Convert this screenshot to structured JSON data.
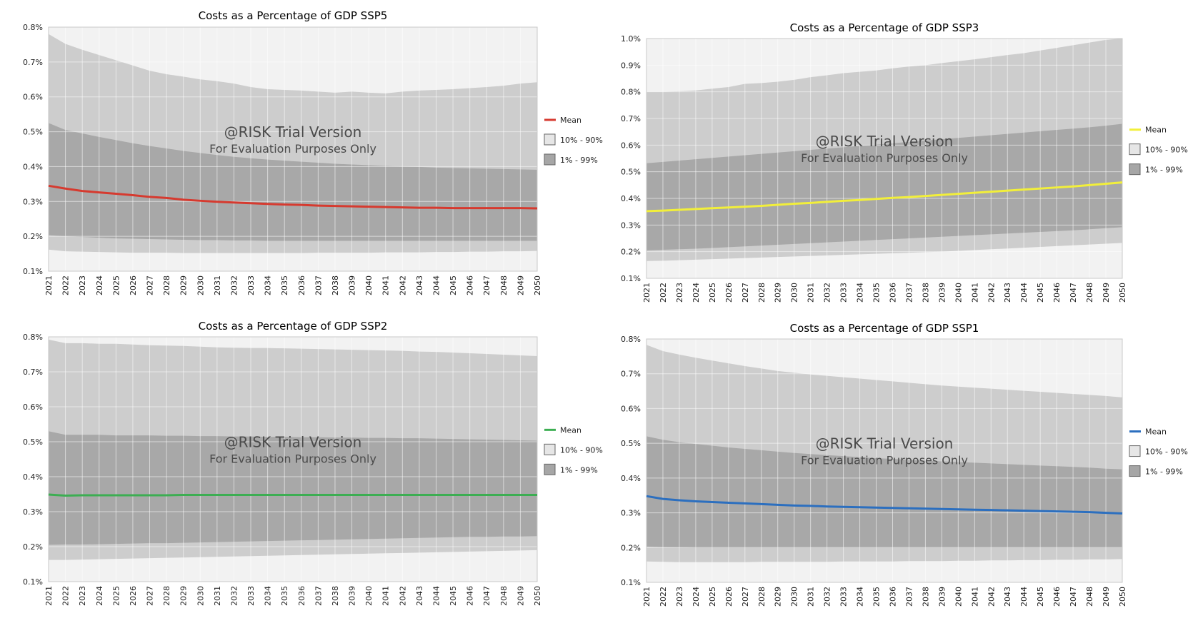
{
  "watermark": {
    "line1": "@RISK Trial Version",
    "line2": "For Evaluation Purposes Only"
  },
  "chart_data": [
    {
      "type": "area",
      "title": "Costs as a Percentage of GDP SSP5",
      "xlabel": "",
      "ylabel": "",
      "x": [
        2021,
        2022,
        2023,
        2024,
        2025,
        2026,
        2027,
        2028,
        2029,
        2030,
        2031,
        2032,
        2033,
        2034,
        2035,
        2036,
        2037,
        2038,
        2039,
        2040,
        2041,
        2042,
        2043,
        2044,
        2045,
        2046,
        2047,
        2048,
        2049,
        2050
      ],
      "yticks": [
        "0.1%",
        "0.2%",
        "0.3%",
        "0.4%",
        "0.5%",
        "0.6%",
        "0.7%",
        "0.8%"
      ],
      "ylim": [
        0.1,
        0.8
      ],
      "grid": true,
      "legend_position": "right",
      "legend": [
        "Mean",
        "10% - 90%",
        "1% - 99%"
      ],
      "mean_color": "#d63a2f",
      "series": [
        {
          "name": "Mean",
          "values": [
            0.345,
            0.337,
            0.33,
            0.326,
            0.322,
            0.318,
            0.313,
            0.31,
            0.305,
            0.302,
            0.299,
            0.297,
            0.295,
            0.293,
            0.291,
            0.29,
            0.288,
            0.287,
            0.286,
            0.285,
            0.284,
            0.283,
            0.282,
            0.282,
            0.281,
            0.281,
            0.281,
            0.281,
            0.281,
            0.28
          ]
        },
        {
          "name": "1%",
          "values": [
            0.162,
            0.157,
            0.156,
            0.155,
            0.154,
            0.153,
            0.153,
            0.153,
            0.152,
            0.152,
            0.152,
            0.152,
            0.152,
            0.152,
            0.152,
            0.152,
            0.153,
            0.153,
            0.153,
            0.153,
            0.154,
            0.154,
            0.154,
            0.155,
            0.155,
            0.156,
            0.156,
            0.157,
            0.157,
            0.158
          ]
        },
        {
          "name": "10%",
          "values": [
            0.203,
            0.2,
            0.198,
            0.196,
            0.194,
            0.193,
            0.192,
            0.191,
            0.19,
            0.189,
            0.189,
            0.188,
            0.188,
            0.187,
            0.187,
            0.187,
            0.187,
            0.187,
            0.187,
            0.187,
            0.187,
            0.187,
            0.187,
            0.187,
            0.187,
            0.187,
            0.187,
            0.187,
            0.187,
            0.187
          ]
        },
        {
          "name": "90%",
          "values": [
            0.525,
            0.505,
            0.495,
            0.485,
            0.476,
            0.467,
            0.459,
            0.452,
            0.445,
            0.439,
            0.433,
            0.428,
            0.424,
            0.42,
            0.417,
            0.414,
            0.411,
            0.408,
            0.406,
            0.404,
            0.402,
            0.4,
            0.399,
            0.397,
            0.396,
            0.395,
            0.394,
            0.393,
            0.392,
            0.391
          ]
        },
        {
          "name": "99%",
          "values": [
            0.78,
            0.752,
            0.735,
            0.72,
            0.705,
            0.69,
            0.675,
            0.665,
            0.658,
            0.65,
            0.645,
            0.638,
            0.628,
            0.622,
            0.62,
            0.618,
            0.615,
            0.612,
            0.615,
            0.612,
            0.61,
            0.615,
            0.618,
            0.62,
            0.622,
            0.625,
            0.628,
            0.632,
            0.638,
            0.642
          ]
        }
      ]
    },
    {
      "type": "area",
      "title": "Costs as a Percentage of GDP SSP3",
      "xlabel": "",
      "ylabel": "",
      "x": [
        2021,
        2022,
        2023,
        2024,
        2025,
        2026,
        2027,
        2028,
        2029,
        2030,
        2031,
        2032,
        2033,
        2034,
        2035,
        2036,
        2037,
        2038,
        2039,
        2040,
        2041,
        2042,
        2043,
        2044,
        2045,
        2046,
        2047,
        2048,
        2049,
        2050
      ],
      "yticks": [
        "0.1%",
        "0.2%",
        "0.3%",
        "0.4%",
        "0.5%",
        "0.6%",
        "0.7%",
        "0.8%",
        "0.9%",
        "1.0%"
      ],
      "ylim": [
        0.1,
        1.0
      ],
      "grid": true,
      "legend_position": "right",
      "legend": [
        "Mean",
        "10% - 90%",
        "1% - 99%"
      ],
      "mean_color": "#f2ef3a",
      "series": [
        {
          "name": "Mean",
          "values": [
            0.352,
            0.354,
            0.357,
            0.36,
            0.363,
            0.366,
            0.369,
            0.372,
            0.376,
            0.38,
            0.383,
            0.387,
            0.391,
            0.394,
            0.398,
            0.402,
            0.405,
            0.409,
            0.413,
            0.417,
            0.421,
            0.425,
            0.429,
            0.433,
            0.437,
            0.441,
            0.445,
            0.45,
            0.455,
            0.46
          ]
        },
        {
          "name": "1%",
          "values": [
            0.165,
            0.166,
            0.168,
            0.17,
            0.172,
            0.174,
            0.176,
            0.178,
            0.18,
            0.182,
            0.184,
            0.186,
            0.188,
            0.19,
            0.192,
            0.194,
            0.196,
            0.198,
            0.2,
            0.203,
            0.206,
            0.209,
            0.212,
            0.215,
            0.218,
            0.221,
            0.224,
            0.227,
            0.23,
            0.233
          ]
        },
        {
          "name": "10%",
          "values": [
            0.205,
            0.207,
            0.209,
            0.211,
            0.214,
            0.217,
            0.22,
            0.223,
            0.226,
            0.229,
            0.232,
            0.235,
            0.238,
            0.241,
            0.244,
            0.247,
            0.25,
            0.253,
            0.256,
            0.259,
            0.262,
            0.265,
            0.268,
            0.271,
            0.274,
            0.277,
            0.28,
            0.284,
            0.288,
            0.292
          ]
        },
        {
          "name": "90%",
          "values": [
            0.532,
            0.537,
            0.542,
            0.547,
            0.552,
            0.557,
            0.562,
            0.567,
            0.572,
            0.577,
            0.582,
            0.587,
            0.592,
            0.597,
            0.602,
            0.607,
            0.612,
            0.617,
            0.622,
            0.627,
            0.632,
            0.637,
            0.642,
            0.647,
            0.652,
            0.657,
            0.662,
            0.667,
            0.673,
            0.68
          ]
        },
        {
          "name": "99%",
          "values": [
            0.8,
            0.8,
            0.802,
            0.805,
            0.812,
            0.818,
            0.83,
            0.833,
            0.838,
            0.845,
            0.855,
            0.862,
            0.87,
            0.875,
            0.88,
            0.888,
            0.895,
            0.9,
            0.908,
            0.915,
            0.922,
            0.93,
            0.938,
            0.945,
            0.955,
            0.965,
            0.975,
            0.985,
            0.995,
            1.0
          ]
        }
      ]
    },
    {
      "type": "area",
      "title": "Costs as a Percentage of GDP SSP2",
      "xlabel": "",
      "ylabel": "",
      "x": [
        2021,
        2022,
        2023,
        2024,
        2025,
        2026,
        2027,
        2028,
        2029,
        2030,
        2031,
        2032,
        2033,
        2034,
        2035,
        2036,
        2037,
        2038,
        2039,
        2040,
        2041,
        2042,
        2043,
        2044,
        2045,
        2046,
        2047,
        2048,
        2049,
        2050
      ],
      "yticks": [
        "0.1%",
        "0.2%",
        "0.3%",
        "0.4%",
        "0.5%",
        "0.6%",
        "0.7%",
        "0.8%"
      ],
      "ylim": [
        0.1,
        0.8
      ],
      "grid": true,
      "legend_position": "right",
      "legend": [
        "Mean",
        "10% - 90%",
        "1% - 99%"
      ],
      "mean_color": "#3cae52",
      "series": [
        {
          "name": "Mean",
          "values": [
            0.349,
            0.346,
            0.347,
            0.347,
            0.347,
            0.347,
            0.347,
            0.347,
            0.348,
            0.348,
            0.348,
            0.348,
            0.348,
            0.348,
            0.348,
            0.348,
            0.348,
            0.348,
            0.348,
            0.348,
            0.348,
            0.348,
            0.348,
            0.348,
            0.348,
            0.348,
            0.348,
            0.348,
            0.348,
            0.348
          ]
        },
        {
          "name": "1%",
          "values": [
            0.162,
            0.162,
            0.163,
            0.164,
            0.165,
            0.166,
            0.167,
            0.168,
            0.169,
            0.17,
            0.171,
            0.172,
            0.173,
            0.174,
            0.175,
            0.176,
            0.177,
            0.178,
            0.179,
            0.18,
            0.181,
            0.182,
            0.183,
            0.184,
            0.185,
            0.186,
            0.187,
            0.188,
            0.189,
            0.19
          ]
        },
        {
          "name": "10%",
          "values": [
            0.205,
            0.206,
            0.206,
            0.207,
            0.208,
            0.209,
            0.21,
            0.21,
            0.211,
            0.212,
            0.213,
            0.214,
            0.215,
            0.216,
            0.217,
            0.218,
            0.219,
            0.22,
            0.221,
            0.222,
            0.223,
            0.224,
            0.225,
            0.226,
            0.227,
            0.228,
            0.228,
            0.229,
            0.229,
            0.23
          ]
        },
        {
          "name": "90%",
          "values": [
            0.53,
            0.52,
            0.52,
            0.52,
            0.518,
            0.518,
            0.518,
            0.517,
            0.517,
            0.516,
            0.516,
            0.515,
            0.515,
            0.514,
            0.514,
            0.513,
            0.513,
            0.512,
            0.512,
            0.511,
            0.511,
            0.51,
            0.51,
            0.509,
            0.508,
            0.507,
            0.506,
            0.505,
            0.504,
            0.503
          ]
        },
        {
          "name": "99%",
          "values": [
            0.792,
            0.782,
            0.782,
            0.78,
            0.78,
            0.778,
            0.776,
            0.775,
            0.774,
            0.772,
            0.77,
            0.769,
            0.768,
            0.768,
            0.767,
            0.766,
            0.765,
            0.764,
            0.763,
            0.762,
            0.761,
            0.76,
            0.758,
            0.757,
            0.755,
            0.753,
            0.751,
            0.749,
            0.747,
            0.745
          ]
        }
      ]
    },
    {
      "type": "area",
      "title": "Costs as a Percentage of GDP SSP1",
      "xlabel": "",
      "ylabel": "",
      "x": [
        2021,
        2022,
        2023,
        2024,
        2025,
        2026,
        2027,
        2028,
        2029,
        2030,
        2031,
        2032,
        2033,
        2034,
        2035,
        2036,
        2037,
        2038,
        2039,
        2040,
        2041,
        2042,
        2043,
        2044,
        2045,
        2046,
        2047,
        2048,
        2049,
        2050
      ],
      "yticks": [
        "0.1%",
        "0.2%",
        "0.3%",
        "0.4%",
        "0.5%",
        "0.6%",
        "0.7%",
        "0.8%"
      ],
      "ylim": [
        0.1,
        0.8
      ],
      "grid": true,
      "legend_position": "right",
      "legend": [
        "Mean",
        "10% - 90%",
        "1% - 99%"
      ],
      "mean_color": "#2c6fbf",
      "series": [
        {
          "name": "Mean",
          "values": [
            0.348,
            0.34,
            0.336,
            0.333,
            0.331,
            0.329,
            0.327,
            0.325,
            0.323,
            0.321,
            0.32,
            0.318,
            0.317,
            0.316,
            0.315,
            0.314,
            0.313,
            0.312,
            0.311,
            0.31,
            0.309,
            0.308,
            0.307,
            0.306,
            0.305,
            0.304,
            0.303,
            0.302,
            0.3,
            0.298
          ]
        },
        {
          "name": "1%",
          "values": [
            0.16,
            0.159,
            0.158,
            0.158,
            0.158,
            0.158,
            0.158,
            0.159,
            0.159,
            0.159,
            0.159,
            0.159,
            0.16,
            0.16,
            0.16,
            0.16,
            0.161,
            0.161,
            0.161,
            0.162,
            0.162,
            0.163,
            0.163,
            0.164,
            0.164,
            0.165,
            0.165,
            0.166,
            0.166,
            0.167
          ]
        },
        {
          "name": "10%",
          "values": [
            0.203,
            0.201,
            0.2,
            0.199,
            0.199,
            0.199,
            0.199,
            0.199,
            0.199,
            0.199,
            0.199,
            0.199,
            0.199,
            0.199,
            0.199,
            0.199,
            0.199,
            0.199,
            0.199,
            0.199,
            0.199,
            0.199,
            0.199,
            0.199,
            0.199,
            0.199,
            0.199,
            0.199,
            0.199,
            0.199
          ]
        },
        {
          "name": "90%",
          "values": [
            0.52,
            0.51,
            0.503,
            0.498,
            0.493,
            0.488,
            0.484,
            0.48,
            0.476,
            0.472,
            0.469,
            0.466,
            0.463,
            0.46,
            0.457,
            0.455,
            0.452,
            0.45,
            0.448,
            0.446,
            0.444,
            0.442,
            0.44,
            0.438,
            0.436,
            0.434,
            0.432,
            0.43,
            0.427,
            0.425
          ]
        },
        {
          "name": "99%",
          "values": [
            0.783,
            0.765,
            0.755,
            0.746,
            0.738,
            0.73,
            0.722,
            0.715,
            0.708,
            0.703,
            0.698,
            0.694,
            0.69,
            0.686,
            0.682,
            0.678,
            0.674,
            0.67,
            0.666,
            0.663,
            0.66,
            0.657,
            0.654,
            0.651,
            0.648,
            0.645,
            0.642,
            0.639,
            0.636,
            0.632
          ]
        }
      ]
    }
  ]
}
